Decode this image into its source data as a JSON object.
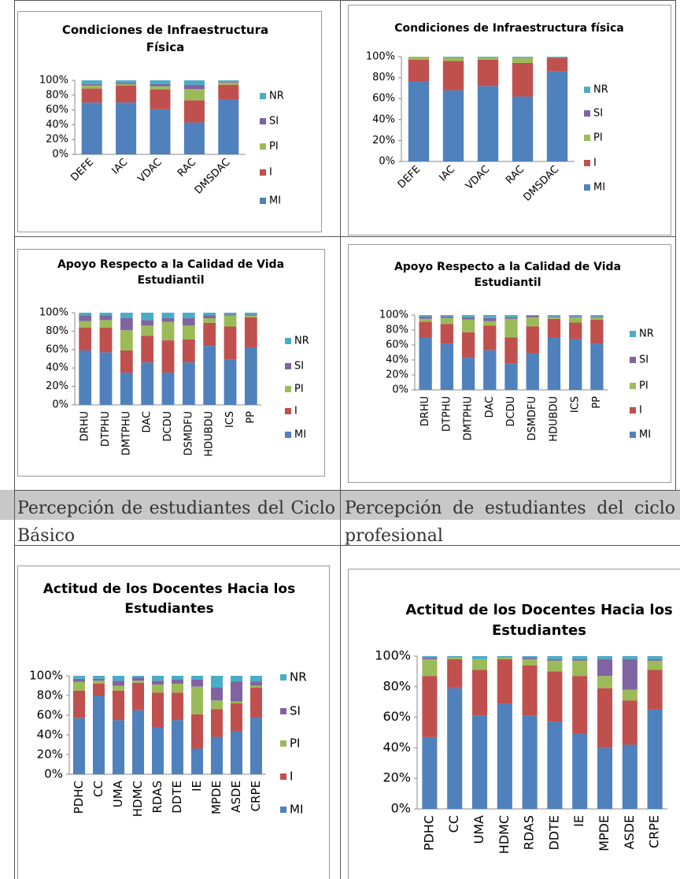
{
  "chart_data": [
    {
      "type": "bar",
      "stacked": true,
      "title": "Condiciones de Infraestructura Física",
      "categories": [
        "DEFE",
        "IAC",
        "VDAC",
        "RAC",
        "DMSDAC"
      ],
      "series": [
        {
          "name": "MI",
          "color": "#4f81bd",
          "values": [
            70,
            70,
            61,
            43,
            74
          ]
        },
        {
          "name": "I",
          "color": "#c0504d",
          "values": [
            19,
            23,
            27,
            30,
            20
          ]
        },
        {
          "name": "PI",
          "color": "#9bbb59",
          "values": [
            4,
            2,
            4,
            15,
            3
          ]
        },
        {
          "name": "SI",
          "color": "#8064a2",
          "values": [
            2,
            2,
            3,
            6,
            1
          ]
        },
        {
          "name": "NR",
          "color": "#4bacc6",
          "values": [
            5,
            3,
            5,
            6,
            2
          ]
        }
      ],
      "ylim": [
        0,
        100
      ],
      "yticks": [
        {
          "value": 0,
          "label": "0%"
        },
        {
          "value": 20,
          "label": "20%"
        },
        {
          "value": 40,
          "label": "40%"
        },
        {
          "value": 60,
          "label": "60%"
        },
        {
          "value": 80,
          "label": "80%"
        },
        {
          "value": 100,
          "label": "100%"
        }
      ],
      "grid": false,
      "legend": "right"
    },
    {
      "type": "bar",
      "stacked": true,
      "title": "Condiciones de Infraestructura física",
      "categories": [
        "DEFE",
        "IAC",
        "VDAC",
        "RAC",
        "DMSDAC"
      ],
      "series": [
        {
          "name": "MI",
          "color": "#4f81bd",
          "values": [
            76,
            68,
            72,
            62,
            86
          ]
        },
        {
          "name": "I",
          "color": "#c0504d",
          "values": [
            21,
            28,
            25,
            32,
            13
          ]
        },
        {
          "name": "PI",
          "color": "#9bbb59",
          "values": [
            3,
            3,
            2,
            5,
            0
          ]
        },
        {
          "name": "SI",
          "color": "#8064a2",
          "values": [
            0,
            0,
            0,
            0,
            0
          ]
        },
        {
          "name": "NR",
          "color": "#4bacc6",
          "values": [
            0,
            1,
            1,
            1,
            1
          ]
        }
      ],
      "ylim": [
        0,
        100
      ],
      "yticks": [
        {
          "value": 0,
          "label": "0%"
        },
        {
          "value": 20,
          "label": "20%"
        },
        {
          "value": 40,
          "label": "40%"
        },
        {
          "value": 60,
          "label": "60%"
        },
        {
          "value": 80,
          "label": "80%"
        },
        {
          "value": 100,
          "label": "100%"
        }
      ],
      "grid": false,
      "legend": "right"
    },
    {
      "type": "bar",
      "stacked": true,
      "title": "Apoyo Respecto a la Calidad de Vida Estudiantil",
      "categories": [
        "DRHU",
        "DTPHU",
        "DMTPHU",
        "DAC",
        "DCDU",
        "DSMDFU",
        "HDUBDU",
        "ICS",
        "PP"
      ],
      "series": [
        {
          "name": "MI",
          "color": "#4f81bd",
          "values": [
            59,
            57,
            35,
            46,
            35,
            46,
            64,
            49,
            62
          ]
        },
        {
          "name": "I",
          "color": "#c0504d",
          "values": [
            25,
            27,
            24,
            29,
            35,
            25,
            25,
            36,
            33
          ]
        },
        {
          "name": "PI",
          "color": "#9bbb59",
          "values": [
            7,
            8,
            22,
            11,
            20,
            15,
            5,
            12,
            2
          ]
        },
        {
          "name": "SI",
          "color": "#8064a2",
          "values": [
            6,
            5,
            13,
            6,
            4,
            8,
            3,
            1,
            1
          ]
        },
        {
          "name": "NR",
          "color": "#4bacc6",
          "values": [
            3,
            3,
            6,
            8,
            6,
            6,
            3,
            2,
            2
          ]
        }
      ],
      "ylim": [
        0,
        100
      ],
      "yticks": [
        {
          "value": 0,
          "label": "0%"
        },
        {
          "value": 20,
          "label": "20%"
        },
        {
          "value": 40,
          "label": "40%"
        },
        {
          "value": 60,
          "label": "60%"
        },
        {
          "value": 80,
          "label": "80%"
        },
        {
          "value": 100,
          "label": "100%"
        }
      ],
      "grid": false,
      "legend": "right"
    },
    {
      "type": "bar",
      "stacked": true,
      "title": "Apoyo Respecto a la Calidad de Vida Estudiantil",
      "categories": [
        "DRHU",
        "DTPHU",
        "DMTPHU",
        "DAC",
        "DCDU",
        "DSMDFU",
        "HDUBDU",
        "ICS",
        "PP"
      ],
      "series": [
        {
          "name": "MI",
          "color": "#4f81bd",
          "values": [
            70,
            62,
            43,
            53,
            35,
            49,
            70,
            68,
            62
          ]
        },
        {
          "name": "I",
          "color": "#c0504d",
          "values": [
            21,
            26,
            34,
            33,
            35,
            36,
            25,
            22,
            32
          ]
        },
        {
          "name": "PI",
          "color": "#9bbb59",
          "values": [
            4,
            8,
            17,
            6,
            25,
            12,
            2,
            7,
            3
          ]
        },
        {
          "name": "SI",
          "color": "#8064a2",
          "values": [
            3,
            2,
            3,
            4,
            2,
            2,
            1,
            1,
            1
          ]
        },
        {
          "name": "NR",
          "color": "#4bacc6",
          "values": [
            2,
            2,
            3,
            4,
            3,
            1,
            2,
            2,
            2
          ]
        }
      ],
      "ylim": [
        0,
        100
      ],
      "yticks": [
        {
          "value": 0,
          "label": "0%"
        },
        {
          "value": 20,
          "label": "20%"
        },
        {
          "value": 40,
          "label": "40%"
        },
        {
          "value": 60,
          "label": "60%"
        },
        {
          "value": 80,
          "label": "80%"
        },
        {
          "value": 100,
          "label": "100%"
        }
      ],
      "grid": false,
      "legend": "right"
    },
    {
      "type": "bar",
      "stacked": true,
      "title": "Actitud de los Docentes Hacia los Estudiantes",
      "categories": [
        "PDHC",
        "CC",
        "UMA",
        "HDMC",
        "RDAS",
        "DDTE",
        "IE",
        "MPDE",
        "ASDE",
        "CRPE"
      ],
      "series": [
        {
          "name": "MI",
          "color": "#4f81bd",
          "values": [
            57,
            80,
            55,
            65,
            48,
            55,
            26,
            38,
            44,
            58
          ]
        },
        {
          "name": "I",
          "color": "#c0504d",
          "values": [
            28,
            12,
            30,
            28,
            35,
            28,
            35,
            28,
            28,
            30
          ]
        },
        {
          "name": "PI",
          "color": "#9bbb59",
          "values": [
            9,
            3,
            5,
            2,
            8,
            9,
            28,
            9,
            2,
            2
          ]
        },
        {
          "name": "SI",
          "color": "#8064a2",
          "values": [
            3,
            2,
            5,
            3,
            4,
            4,
            7,
            13,
            20,
            4
          ]
        },
        {
          "name": "NR",
          "color": "#4bacc6",
          "values": [
            3,
            3,
            5,
            2,
            5,
            4,
            4,
            12,
            6,
            6
          ]
        }
      ],
      "ylim": [
        0,
        100
      ],
      "yticks": [
        {
          "value": 0,
          "label": "0%"
        },
        {
          "value": 20,
          "label": "20%"
        },
        {
          "value": 40,
          "label": "40%"
        },
        {
          "value": 60,
          "label": "60%"
        },
        {
          "value": 80,
          "label": "80%"
        },
        {
          "value": 100,
          "label": "100%"
        }
      ],
      "grid": false,
      "legend": "right"
    },
    {
      "type": "bar",
      "stacked": true,
      "title": "Actitud de los Docentes Hacia los Estudiantes",
      "categories": [
        "PDHC",
        "CC",
        "UMA",
        "HDMC",
        "RDAS",
        "DDTE",
        "IE",
        "MPDE",
        "ASDE",
        "CRPE"
      ],
      "series": [
        {
          "name": "MI",
          "color": "#4f81bd",
          "values": [
            47,
            79,
            61,
            69,
            61,
            57,
            49,
            40,
            42,
            65
          ]
        },
        {
          "name": "I",
          "color": "#c0504d",
          "values": [
            40,
            19,
            30,
            29,
            33,
            33,
            38,
            39,
            29,
            26
          ]
        },
        {
          "name": "PI",
          "color": "#9bbb59",
          "values": [
            11,
            1,
            7,
            1,
            4,
            7,
            10,
            8,
            7,
            6
          ]
        },
        {
          "name": "SI",
          "color": "#8064a2",
          "values": [
            1,
            0,
            0,
            0,
            1,
            1,
            1,
            11,
            20,
            1
          ]
        },
        {
          "name": "NR",
          "color": "#4bacc6",
          "values": [
            1,
            1,
            2,
            1,
            1,
            2,
            2,
            2,
            2,
            2
          ]
        }
      ],
      "ylim": [
        0,
        100
      ],
      "yticks": [
        {
          "value": 0,
          "label": "0%"
        },
        {
          "value": 20,
          "label": "20%"
        },
        {
          "value": 40,
          "label": "40%"
        },
        {
          "value": 60,
          "label": "60%"
        },
        {
          "value": 80,
          "label": "80%"
        },
        {
          "value": 100,
          "label": "100%"
        }
      ],
      "grid": false,
      "legend": "none"
    }
  ],
  "captions": [
    "Percepción de estudiantes del Ciclo Básico",
    "Percepción de estudiantes del ciclo profesional"
  ]
}
